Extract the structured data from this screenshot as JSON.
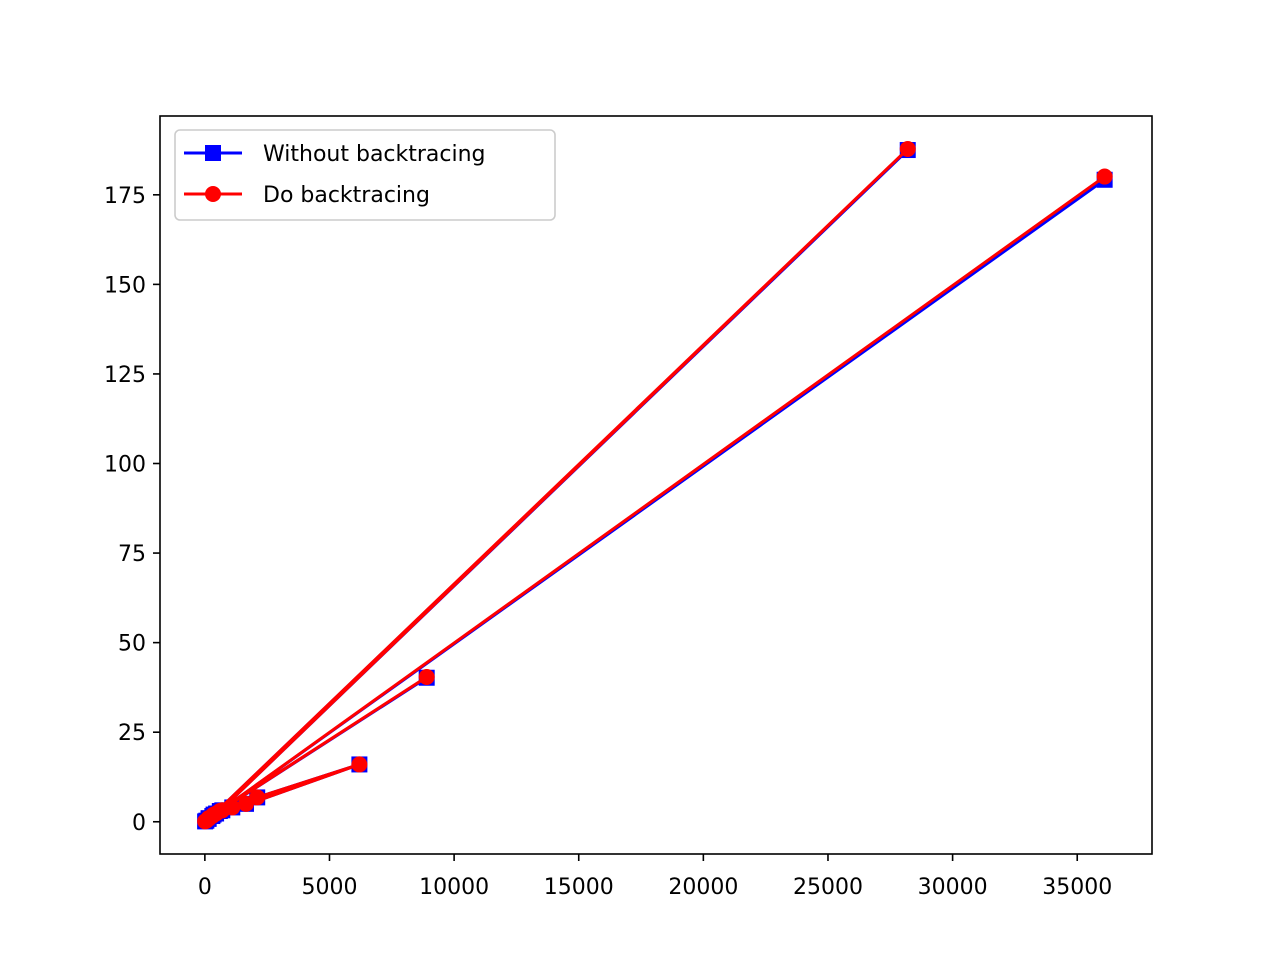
{
  "chart_data": {
    "type": "line",
    "title": "",
    "xlabel": "",
    "ylabel": "",
    "xlim": [
      -1800,
      38000
    ],
    "ylim": [
      -9,
      197
    ],
    "xticks": [
      0,
      5000,
      10000,
      15000,
      20000,
      25000,
      30000,
      35000
    ],
    "yticks": [
      0,
      25,
      50,
      75,
      100,
      125,
      150,
      175
    ],
    "grid": false,
    "legend_position": "top-left",
    "series": [
      {
        "name": "Without backtracing",
        "color": "#0000ff",
        "marker": "square",
        "x": [
          10,
          60,
          150,
          300,
          450,
          700,
          1100,
          1650,
          2100,
          6200,
          150,
          8900,
          350,
          28200,
          600,
          36100
        ],
        "y": [
          0.1,
          0.3,
          0.8,
          1.6,
          2.3,
          3.2,
          4.0,
          5.0,
          6.8,
          16.0,
          1.0,
          40.2,
          2.0,
          187.5,
          3.0,
          179.2
        ]
      },
      {
        "name": "Do backtracing",
        "color": "#ff0000",
        "marker": "circle",
        "x": [
          10,
          60,
          150,
          300,
          450,
          700,
          1100,
          1650,
          2100,
          6200,
          150,
          8900,
          350,
          28200,
          600,
          36100
        ],
        "y": [
          0.1,
          0.3,
          0.8,
          1.6,
          2.3,
          3.2,
          4.0,
          5.0,
          6.8,
          16.0,
          1.0,
          40.4,
          2.0,
          187.8,
          3.0,
          180.1
        ]
      }
    ]
  }
}
